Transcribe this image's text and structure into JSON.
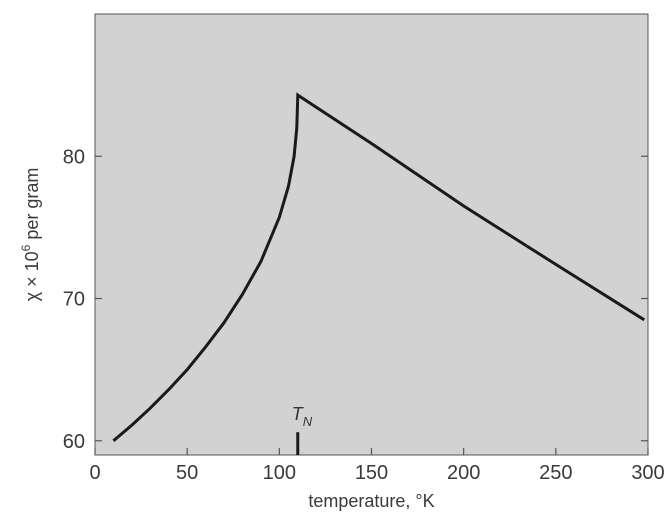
{
  "colors": {
    "plot_background": "#d2d2d2",
    "curve": "#1a1a1a",
    "axis": "#555555",
    "text": "#3a3a3a"
  },
  "chart_data": {
    "type": "line",
    "title": "",
    "xlabel": "temperature, °K",
    "ylabel_parts": {
      "chi": "χ × 10",
      "exp": "6",
      "rest": " per gram"
    },
    "xlim": [
      0,
      300
    ],
    "ylim": [
      59,
      90
    ],
    "xticks": [
      0,
      50,
      100,
      150,
      200,
      250,
      300
    ],
    "xtick_labels": [
      "0",
      "50",
      "100",
      "150",
      "200",
      "250",
      "300"
    ],
    "yticks": [
      60,
      70,
      80
    ],
    "ytick_labels": [
      "60",
      "70",
      "80"
    ],
    "grid": false,
    "series": [
      {
        "x": [
          10,
          20,
          30,
          40,
          50,
          60,
          70,
          80,
          90,
          100,
          105,
          108,
          109.5,
          110,
          150,
          200,
          250,
          298
        ],
        "values": [
          60.0,
          61.1,
          62.3,
          63.6,
          65.0,
          66.6,
          68.3,
          70.3,
          72.6,
          75.7,
          77.9,
          80.0,
          82.0,
          84.3,
          80.9,
          76.5,
          72.4,
          68.5
        ]
      }
    ],
    "annotations": [
      {
        "text": "T",
        "subscript": "N",
        "x": 110,
        "marker_y": [
          59,
          60.6
        ]
      }
    ]
  }
}
